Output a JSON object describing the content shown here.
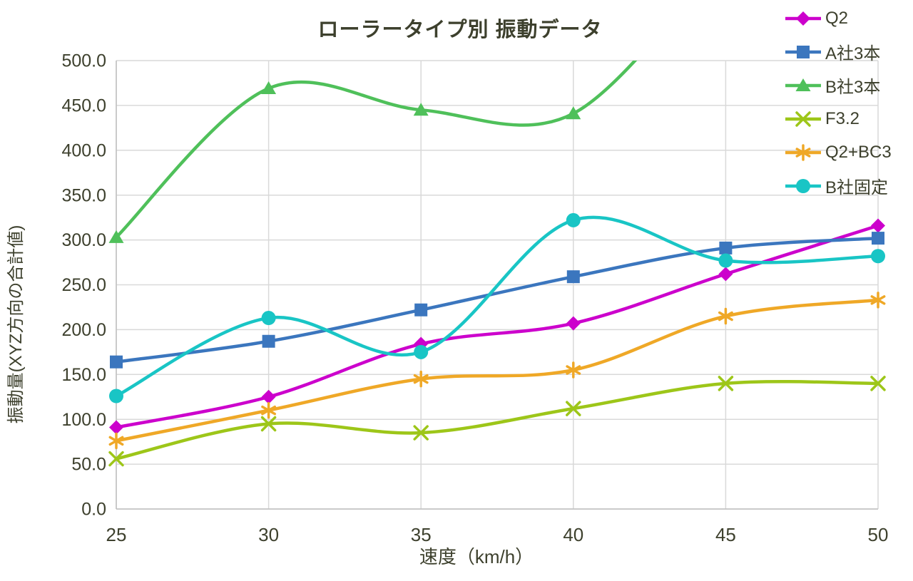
{
  "chart_data": {
    "type": "line",
    "title": "ローラータイプ別 振動データ",
    "xlabel": "速度（km/h）",
    "ylabel": "振動量(XYZ方向の合計値)",
    "x": [
      25,
      30,
      35,
      40,
      45,
      50
    ],
    "x_tick_labels": [
      "25",
      "30",
      "35",
      "40",
      "45",
      "50"
    ],
    "xlim": [
      25,
      50
    ],
    "y_ticks": [
      0,
      50,
      100,
      150,
      200,
      250,
      300,
      350,
      400,
      450,
      500
    ],
    "y_tick_labels": [
      "0.0",
      "50.0",
      "100.0",
      "150.0",
      "200.0",
      "250.0",
      "300.0",
      "350.0",
      "400.0",
      "450.0",
      "500.0"
    ],
    "ylim": [
      0,
      500
    ],
    "grid": true,
    "smooth_lines": true,
    "legend_position": "right-top",
    "series": [
      {
        "name": "Q2",
        "color": "#CC00CC",
        "marker": "diamond",
        "values": [
          91,
          125,
          184,
          207,
          262,
          316
        ]
      },
      {
        "name": "A社3本",
        "color": "#3B76BE",
        "marker": "square",
        "values": [
          164,
          187,
          222,
          259,
          291,
          302
        ]
      },
      {
        "name": "B社3本",
        "color": "#4FC05A",
        "marker": "triangle",
        "values": [
          303,
          469,
          445,
          441,
          null,
          null
        ],
        "note": "line rises past the 500.0 axis maximum between x=40 and x=45 and is clipped at the top of the plot",
        "offchart_continuation": {
          "x": 45,
          "value": 620
        }
      },
      {
        "name": "F3.2",
        "color": "#9DC619",
        "marker": "x",
        "values": [
          56,
          95,
          85,
          112,
          140,
          140
        ]
      },
      {
        "name": "Q2+BC3",
        "color": "#EFA827",
        "marker": "asterisk",
        "values": [
          76,
          110,
          145,
          155,
          215,
          233
        ]
      },
      {
        "name": "B社固定",
        "color": "#19C5C5",
        "marker": "circle",
        "values": [
          126,
          213,
          175,
          322,
          277,
          282
        ]
      }
    ],
    "colors": {
      "text": "#3D402D",
      "grid": "#D9D9D9",
      "axis_line": "#BFBFBF",
      "background": "#FFFFFF"
    }
  }
}
